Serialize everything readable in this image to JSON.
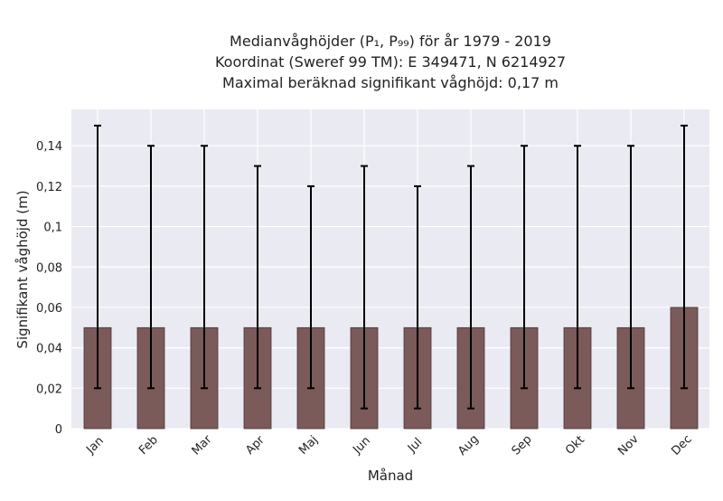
{
  "chart_data": {
    "type": "bar",
    "title_lines": [
      "Medianvåghöjder (P₁, P₉₉) för år 1979 - 2019",
      "Koordinat (Sweref 99 TM): E 349471, N 6214927",
      "Maximal beräknad signifikant våghöjd: 0,17 m"
    ],
    "xlabel": "Månad",
    "ylabel": "Signifikant våghöjd (m)",
    "categories": [
      "Jan",
      "Feb",
      "Mar",
      "Apr",
      "Maj",
      "Jun",
      "Jul",
      "Aug",
      "Sep",
      "Okt",
      "Nov",
      "Dec"
    ],
    "values": [
      0.05,
      0.05,
      0.05,
      0.05,
      0.05,
      0.05,
      0.05,
      0.05,
      0.05,
      0.05,
      0.05,
      0.06
    ],
    "error_low": [
      0.02,
      0.02,
      0.02,
      0.02,
      0.02,
      0.01,
      0.01,
      0.01,
      0.02,
      0.02,
      0.02,
      0.02
    ],
    "error_high": [
      0.15,
      0.14,
      0.14,
      0.13,
      0.12,
      0.13,
      0.12,
      0.13,
      0.14,
      0.14,
      0.14,
      0.15
    ],
    "ylim": [
      0,
      0.158
    ],
    "yticks": [
      0,
      0.02,
      0.04,
      0.06,
      0.08,
      0.1,
      0.12,
      0.14
    ],
    "ytick_labels": [
      "0",
      "0,02",
      "0,04",
      "0,06",
      "0,08",
      "0,1",
      "0,12",
      "0,14"
    ],
    "grid": true,
    "colors": {
      "bar": "#7b5a5a",
      "bar_edge": "#4a3434",
      "plot_background": "#eaeaf2",
      "grid": "#ffffff",
      "error_bar": "#000000"
    }
  }
}
